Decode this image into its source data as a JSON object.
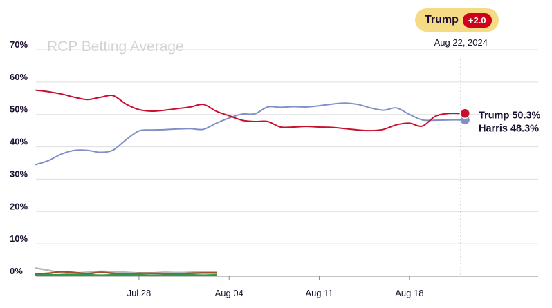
{
  "chart_data": {
    "type": "line",
    "title": "RCP Betting Average",
    "ylim": [
      0,
      70
    ],
    "yticks": [
      "0%",
      "10%",
      "20%",
      "30%",
      "40%",
      "50%",
      "60%",
      "70%"
    ],
    "ytick_values": [
      0,
      10,
      20,
      30,
      40,
      50,
      60,
      70
    ],
    "xlim": [
      0,
      39
    ],
    "xticks": [
      {
        "label": "Jul 28",
        "x": 8
      },
      {
        "label": "Aug 04",
        "x": 15
      },
      {
        "label": "Aug 11",
        "x": 22
      },
      {
        "label": "Aug 18",
        "x": 29
      }
    ],
    "grid": true,
    "hover_date": "Aug 22, 2024",
    "hover_x": 33,
    "badge": {
      "leader": "Trump",
      "spread": "+2.0"
    },
    "series": [
      {
        "name": "Trump",
        "color": "#c8102e",
        "end_label": "Trump 50.3%",
        "x": [
          0,
          1,
          2,
          3,
          4,
          5,
          6,
          7,
          8,
          9,
          10,
          11,
          12,
          13,
          14,
          15,
          16,
          17,
          18,
          19,
          20,
          21,
          22,
          23,
          24,
          25,
          26,
          27,
          28,
          29,
          30,
          31,
          32,
          33
        ],
        "values": [
          57.5,
          57,
          56.3,
          55.3,
          54.6,
          55.3,
          55.8,
          53.2,
          51.5,
          51,
          51.3,
          51.8,
          52.3,
          53.1,
          51,
          49.6,
          48.2,
          47.8,
          47.8,
          46.1,
          46.1,
          46.3,
          46.1,
          46,
          45.6,
          45.2,
          45,
          45.4,
          46.8,
          47.3,
          46.4,
          49.4,
          50.3,
          50.3
        ]
      },
      {
        "name": "Harris",
        "color": "#7f8fc8",
        "end_label": "Harris 48.3%",
        "x": [
          0,
          1,
          2,
          3,
          4,
          5,
          6,
          7,
          8,
          9,
          10,
          11,
          12,
          13,
          14,
          15,
          16,
          17,
          18,
          19,
          20,
          21,
          22,
          23,
          24,
          25,
          26,
          27,
          28,
          29,
          30,
          31,
          32,
          33
        ],
        "values": [
          34.5,
          35.8,
          37.8,
          38.9,
          38.9,
          38.3,
          39,
          42.2,
          44.9,
          45.2,
          45.3,
          45.5,
          45.6,
          45.4,
          47.3,
          48.9,
          50.1,
          50.2,
          52.3,
          52.2,
          52.4,
          52.3,
          52.7,
          53.2,
          53.5,
          53.1,
          52,
          51.3,
          52,
          50,
          48.3,
          48.2,
          48.3,
          48.3
        ]
      },
      {
        "color": "#b8b8bc",
        "x": [
          0,
          1,
          2,
          3,
          4,
          5,
          6,
          7,
          8,
          9,
          10,
          11,
          12,
          13,
          14
        ],
        "values": [
          2.5,
          1.8,
          1,
          1,
          1.2,
          1.5,
          1.4,
          1.2,
          1,
          1,
          1.2,
          1.1,
          1.2,
          1.3,
          1.4
        ]
      },
      {
        "color": "#a0522d",
        "x": [
          0,
          1,
          2,
          3,
          4,
          5,
          6,
          7,
          8,
          9,
          10,
          11,
          12,
          13,
          14
        ],
        "values": [
          0.7,
          0.9,
          1.4,
          1.1,
          0.8,
          1.2,
          0.9,
          0.6,
          0.9,
          0.9,
          0.8,
          0.7,
          0.9,
          1,
          1
        ]
      },
      {
        "color": "#2e9a47",
        "x": [
          0,
          1,
          2,
          3,
          4,
          5,
          6,
          7,
          8,
          9,
          10,
          11,
          12,
          13,
          14
        ],
        "values": [
          0.3,
          0.4,
          0.4,
          0.5,
          0.4,
          0.3,
          0.4,
          0.4,
          0.4,
          0.3,
          0.3,
          0.4,
          0.4,
          0.3,
          0.4
        ]
      }
    ]
  }
}
